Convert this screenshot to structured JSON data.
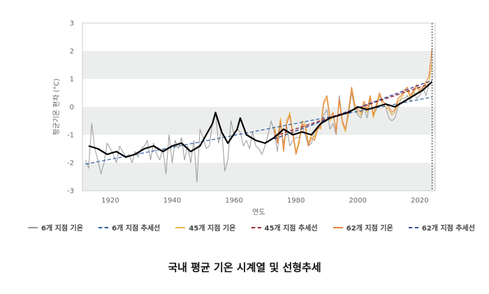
{
  "caption": "국내 평균 기온 시계열 및 선형추세",
  "chart_data": {
    "type": "line",
    "xlabel": "연도",
    "ylabel": "평균기온 편차 (°C)",
    "xlim": [
      1911,
      2025
    ],
    "ylim": [
      -3,
      3
    ],
    "xticks": [
      "1920",
      "1940",
      "1960",
      "1980",
      "2000",
      "2020"
    ],
    "yticks": [
      "3",
      "2",
      "1",
      "0",
      "-1",
      "-2",
      "-3"
    ],
    "vline_x": 2024,
    "colors": {
      "series6": "#999999",
      "trend6": "#2a5d9f",
      "series45": "#e8b84a",
      "trend45": "#9b2a3a",
      "series62": "#e8843c",
      "trend62": "#3b4f9a",
      "smooth": "#000000",
      "band": "#eceeee"
    },
    "series": [
      {
        "name": "6개 지점 기온",
        "x": [
          1912,
          1913,
          1914,
          1915,
          1916,
          1917,
          1918,
          1919,
          1920,
          1921,
          1922,
          1923,
          1924,
          1925,
          1926,
          1927,
          1928,
          1929,
          1930,
          1931,
          1932,
          1933,
          1934,
          1935,
          1936,
          1937,
          1938,
          1939,
          1940,
          1941,
          1942,
          1943,
          1944,
          1945,
          1946,
          1947,
          1948,
          1949,
          1950,
          1951,
          1952,
          1953,
          1954,
          1955,
          1956,
          1957,
          1958,
          1959,
          1960,
          1961,
          1962,
          1963,
          1964,
          1965,
          1966,
          1967,
          1968,
          1969,
          1970,
          1971,
          1972,
          1973,
          1974,
          1975,
          1976,
          1977,
          1978,
          1979,
          1980,
          1981,
          1982,
          1983,
          1984,
          1985,
          1986,
          1987,
          1988,
          1989,
          1990,
          1991,
          1992,
          1993,
          1994,
          1995,
          1996,
          1997,
          1998,
          1999,
          2000,
          2001,
          2002,
          2003,
          2004,
          2005,
          2006,
          2007,
          2008,
          2009,
          2010,
          2011,
          2012,
          2013,
          2014,
          2015,
          2016,
          2017,
          2018,
          2019,
          2020,
          2021,
          2022,
          2023,
          2024
        ],
        "values": [
          -1.9,
          -2.2,
          -0.6,
          -1.5,
          -1.9,
          -2.4,
          -2.0,
          -1.3,
          -1.5,
          -1.7,
          -2.0,
          -1.4,
          -1.6,
          -1.8,
          -1.7,
          -2.0,
          -1.6,
          -1.8,
          -1.5,
          -1.4,
          -1.2,
          -1.9,
          -1.3,
          -1.7,
          -1.9,
          -1.5,
          -2.4,
          -1.0,
          -2.0,
          -1.2,
          -1.5,
          -1.1,
          -1.9,
          -1.4,
          -2.0,
          -1.2,
          -2.7,
          -0.8,
          -1.1,
          -1.5,
          -1.4,
          -0.6,
          -0.2,
          -1.3,
          -0.8,
          -2.3,
          -1.9,
          -0.5,
          -1.0,
          -0.8,
          -0.9,
          -1.4,
          -1.2,
          -1.5,
          -0.9,
          -1.4,
          -1.5,
          -1.7,
          -1.4,
          -1.0,
          -0.5,
          -0.9,
          -1.6,
          -0.6,
          -1.3,
          -0.7,
          -1.4,
          -1.2,
          -1.1,
          -1.1,
          -0.7,
          -1.0,
          -1.4,
          -1.3,
          -0.9,
          -0.8,
          -0.7,
          -0.3,
          -0.1,
          -0.8,
          -0.6,
          -1.0,
          0.4,
          -0.5,
          -0.8,
          -0.3,
          0.5,
          -0.1,
          -0.3,
          -0.4,
          0.0,
          -0.4,
          0.2,
          -0.3,
          -0.1,
          0.5,
          0.1,
          0.0,
          -0.4,
          -0.5,
          -0.4,
          0.0,
          0.3,
          0.3,
          0.4,
          0.2,
          0.6,
          0.3,
          0.4,
          0.7,
          0.4,
          0.8,
          0.9
        ]
      },
      {
        "name": "6개 지점 추세선",
        "x": [
          1912,
          2024
        ],
        "values": [
          -2.05,
          0.35
        ]
      },
      {
        "name": "45개 지점 기온",
        "x": [
          1973,
          1974,
          1975,
          1976,
          1977,
          1978,
          1979,
          1980,
          1981,
          1982,
          1983,
          1984,
          1985,
          1986,
          1987,
          1988,
          1989,
          1990,
          1991,
          1992,
          1993,
          1994,
          1995,
          1996,
          1997,
          1998,
          1999,
          2000,
          2001,
          2002,
          2003,
          2004,
          2005,
          2006,
          2007,
          2008,
          2009,
          2010,
          2011,
          2012,
          2013,
          2014,
          2015,
          2016,
          2017,
          2018,
          2019,
          2020,
          2021,
          2022,
          2023,
          2024
        ],
        "values": [
          -0.7,
          -1.2,
          -0.4,
          -1.5,
          -0.5,
          -0.2,
          -0.9,
          -1.6,
          -1.2,
          -0.5,
          -0.6,
          -1.3,
          -1.0,
          -1.1,
          -0.7,
          -0.8,
          0.1,
          0.3,
          -0.5,
          -0.3,
          -0.8,
          0.2,
          -0.6,
          -0.9,
          -0.2,
          0.6,
          0.0,
          -0.2,
          -0.3,
          0.1,
          -0.2,
          0.3,
          -0.4,
          0.0,
          0.4,
          0.1,
          0.0,
          -0.1,
          -0.3,
          -0.2,
          0.2,
          0.3,
          0.5,
          0.6,
          0.3,
          0.5,
          0.7,
          0.5,
          0.6,
          0.8,
          0.9,
          1.6
        ]
      },
      {
        "name": "45개 지점 추세선",
        "x": [
          1973,
          2024
        ],
        "values": [
          -1.05,
          0.85
        ]
      },
      {
        "name": "62개 지점 기온",
        "x": [
          1973,
          1974,
          1975,
          1976,
          1977,
          1978,
          1979,
          1980,
          1981,
          1982,
          1983,
          1984,
          1985,
          1986,
          1987,
          1988,
          1989,
          1990,
          1991,
          1992,
          1993,
          1994,
          1995,
          1996,
          1997,
          1998,
          1999,
          2000,
          2001,
          2002,
          2003,
          2004,
          2005,
          2006,
          2007,
          2008,
          2009,
          2010,
          2011,
          2012,
          2013,
          2014,
          2015,
          2016,
          2017,
          2018,
          2019,
          2020,
          2021,
          2022,
          2023,
          2024
        ],
        "values": [
          -0.8,
          -1.3,
          -0.5,
          -1.6,
          -0.6,
          -0.3,
          -1.0,
          -1.7,
          -1.3,
          -0.6,
          -0.7,
          -1.4,
          -1.1,
          -1.2,
          -0.8,
          -0.7,
          0.2,
          0.4,
          -0.4,
          -0.2,
          -0.9,
          0.3,
          -0.5,
          -0.8,
          -0.1,
          0.7,
          0.1,
          -0.1,
          -0.2,
          0.2,
          -0.1,
          0.4,
          -0.3,
          0.1,
          0.5,
          0.2,
          0.1,
          0.0,
          -0.2,
          -0.1,
          0.3,
          0.4,
          0.6,
          0.7,
          0.4,
          0.6,
          0.8,
          0.6,
          0.7,
          0.9,
          1.1,
          2.1
        ]
      },
      {
        "name": "62개 지점 추세선",
        "x": [
          1973,
          2024
        ],
        "values": [
          -1.15,
          0.95
        ]
      }
    ],
    "smooth_series": {
      "x": [
        1913,
        1916,
        1919,
        1922,
        1925,
        1928,
        1931,
        1934,
        1937,
        1940,
        1943,
        1946,
        1949,
        1951,
        1953,
        1954,
        1956,
        1958,
        1961,
        1962,
        1964,
        1967,
        1970,
        1973,
        1976,
        1979,
        1982,
        1985,
        1988,
        1991,
        1994,
        1997,
        2000,
        2003,
        2006,
        2009,
        2012,
        2015,
        2018,
        2021,
        2024
      ],
      "values": [
        -1.4,
        -1.5,
        -1.7,
        -1.6,
        -1.8,
        -1.7,
        -1.5,
        -1.4,
        -1.6,
        -1.4,
        -1.3,
        -1.6,
        -1.4,
        -1.0,
        -0.6,
        -0.2,
        -0.9,
        -1.3,
        -0.8,
        -0.4,
        -1.0,
        -1.2,
        -1.3,
        -1.1,
        -0.8,
        -1.0,
        -0.9,
        -1.0,
        -0.6,
        -0.4,
        -0.3,
        -0.2,
        0.0,
        -0.1,
        0.0,
        0.1,
        0.0,
        0.2,
        0.4,
        0.6,
        0.9
      ]
    }
  }
}
